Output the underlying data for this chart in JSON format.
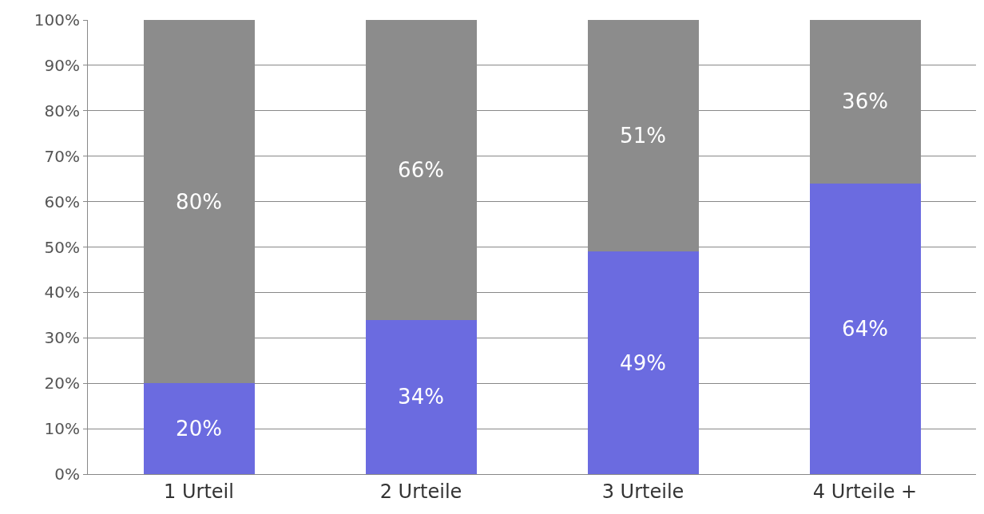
{
  "chart_data": {
    "type": "bar",
    "stacked": true,
    "categories": [
      "1 Urteil",
      "2 Urteile",
      "3 Urteile",
      "4 Urteile +"
    ],
    "series": [
      {
        "color": "#6b6be0",
        "values": [
          20,
          34,
          49,
          64
        ],
        "value_labels": [
          "20%",
          "34%",
          "49%",
          "64%"
        ]
      },
      {
        "color": "#8c8c8c",
        "values": [
          80,
          66,
          51,
          36
        ],
        "value_labels": [
          "80%",
          "66%",
          "51%",
          "36%"
        ]
      }
    ],
    "ylim": [
      0,
      100
    ],
    "yticks": [
      {
        "value": 0,
        "label": "0%"
      },
      {
        "value": 10,
        "label": "10%"
      },
      {
        "value": 20,
        "label": "20%"
      },
      {
        "value": 30,
        "label": "30%"
      },
      {
        "value": 40,
        "label": "40%"
      },
      {
        "value": 50,
        "label": "50%"
      },
      {
        "value": 60,
        "label": "60%"
      },
      {
        "value": 70,
        "label": "70%"
      },
      {
        "value": 80,
        "label": "80%"
      },
      {
        "value": 90,
        "label": "90%"
      },
      {
        "value": 100,
        "label": "100%"
      }
    ],
    "grid": "y"
  }
}
